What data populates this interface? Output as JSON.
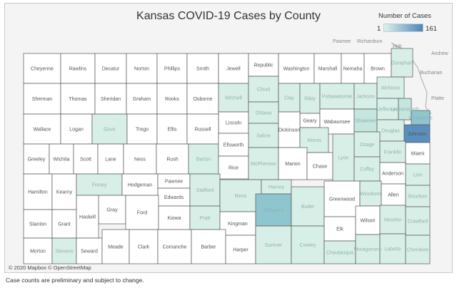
{
  "title": "Kansas COVID-19 Cases by County",
  "legend": {
    "title": "Number of Cases",
    "min": "1",
    "max": "161",
    "color_low": "#dff1ec",
    "color_high": "#4f86b7"
  },
  "attribution": "© 2020 Mapbox © OpenStreetMap",
  "footnote": "Case counts are preliminary and subject to change.",
  "edge_labels": [
    "Pawnee",
    "Richardson",
    "Holt",
    "Andrew",
    "Buchanan",
    "Platte"
  ],
  "colors": {
    "none": "#ffffff",
    "level1": "#d8efe8",
    "level2": "#c4e6de",
    "level3": "#8ec6d0",
    "level4": "#5a8fbd",
    "background": "#f4f4f4"
  },
  "counties": [
    {
      "name": "Cheyenne",
      "level": 0
    },
    {
      "name": "Rawlins",
      "level": 0
    },
    {
      "name": "Decatur",
      "level": 0
    },
    {
      "name": "Norton",
      "level": 0
    },
    {
      "name": "Phillips",
      "level": 0
    },
    {
      "name": "Smith",
      "level": 0
    },
    {
      "name": "Jewell",
      "level": 0
    },
    {
      "name": "Republic",
      "level": 0
    },
    {
      "name": "Washington",
      "level": 0
    },
    {
      "name": "Marshall",
      "level": 0
    },
    {
      "name": "Nemaha",
      "level": 0
    },
    {
      "name": "Brown",
      "level": 0
    },
    {
      "name": "Doniphan",
      "level": 1
    },
    {
      "name": "Sherman",
      "level": 0
    },
    {
      "name": "Thomas",
      "level": 0
    },
    {
      "name": "Sheridan",
      "level": 0
    },
    {
      "name": "Graham",
      "level": 0
    },
    {
      "name": "Rooks",
      "level": 0
    },
    {
      "name": "Osborne",
      "level": 0
    },
    {
      "name": "Mitchell",
      "level": 1
    },
    {
      "name": "Cloud",
      "level": 1
    },
    {
      "name": "Clay",
      "level": 1
    },
    {
      "name": "Riley",
      "level": 1
    },
    {
      "name": "Pottawatomie",
      "level": 1
    },
    {
      "name": "Jackson",
      "level": 1
    },
    {
      "name": "Atchison",
      "level": 1
    },
    {
      "name": "Lincoln",
      "level": 0
    },
    {
      "name": "Ottawa",
      "level": 1
    },
    {
      "name": "Geary",
      "level": 0
    },
    {
      "name": "Wabaunsee",
      "level": 0
    },
    {
      "name": "Shawnee",
      "level": 2
    },
    {
      "name": "Jefferson",
      "level": 1
    },
    {
      "name": "Leavenworth",
      "level": 2
    },
    {
      "name": "Wyandotte",
      "level": 3
    },
    {
      "name": "Wallace",
      "level": 0
    },
    {
      "name": "Logan",
      "level": 0
    },
    {
      "name": "Gove",
      "level": 1
    },
    {
      "name": "Trego",
      "level": 0
    },
    {
      "name": "Ellis",
      "level": 0
    },
    {
      "name": "Russell",
      "level": 0
    },
    {
      "name": "Saline",
      "level": 1
    },
    {
      "name": "Dickinson",
      "level": 0
    },
    {
      "name": "Douglas",
      "level": 1
    },
    {
      "name": "Johnson",
      "level": 4
    },
    {
      "name": "Greeley",
      "level": 0
    },
    {
      "name": "Wichita",
      "level": 0
    },
    {
      "name": "Scott",
      "level": 0
    },
    {
      "name": "Lane",
      "level": 0
    },
    {
      "name": "Ness",
      "level": 0
    },
    {
      "name": "Rush",
      "level": 0
    },
    {
      "name": "Barton",
      "level": 1
    },
    {
      "name": "Ellsworth",
      "level": 0
    },
    {
      "name": "Morris",
      "level": 1
    },
    {
      "name": "Osage",
      "level": 1
    },
    {
      "name": "Franklin",
      "level": 1
    },
    {
      "name": "Miami",
      "level": 0
    },
    {
      "name": "Rice",
      "level": 0
    },
    {
      "name": "McPherson",
      "level": 1
    },
    {
      "name": "Marion",
      "level": 0
    },
    {
      "name": "Chase",
      "level": 0
    },
    {
      "name": "Lyon",
      "level": 1
    },
    {
      "name": "Coffey",
      "level": 1
    },
    {
      "name": "Anderson",
      "level": 0
    },
    {
      "name": "Linn",
      "level": 1
    },
    {
      "name": "Hamilton",
      "level": 0
    },
    {
      "name": "Kearny",
      "level": 0
    },
    {
      "name": "Finney",
      "level": 1
    },
    {
      "name": "Hodgeman",
      "level": 0
    },
    {
      "name": "Pawnee",
      "level": 0
    },
    {
      "name": "Edwards",
      "level": 0
    },
    {
      "name": "Stafford",
      "level": 1
    },
    {
      "name": "Reno",
      "level": 1
    },
    {
      "name": "Harvey",
      "level": 1
    },
    {
      "name": "Greenwood",
      "level": 0
    },
    {
      "name": "Woodson",
      "level": 1
    },
    {
      "name": "Allen",
      "level": 0
    },
    {
      "name": "Bourbon",
      "level": 1
    },
    {
      "name": "Gray",
      "level": 0
    },
    {
      "name": "Ford",
      "level": 0
    },
    {
      "name": "Kiowa",
      "level": 0
    },
    {
      "name": "Pratt",
      "level": 1
    },
    {
      "name": "Kingman",
      "level": 0
    },
    {
      "name": "Sedgwick",
      "level": 3
    },
    {
      "name": "Butler",
      "level": 1
    },
    {
      "name": "Elk",
      "level": 0
    },
    {
      "name": "Wilson",
      "level": 0
    },
    {
      "name": "Neosho",
      "level": 1
    },
    {
      "name": "Crawford",
      "level": 1
    },
    {
      "name": "Stanton",
      "level": 0
    },
    {
      "name": "Grant",
      "level": 0
    },
    {
      "name": "Haskell",
      "level": 0
    },
    {
      "name": "Morton",
      "level": 0
    },
    {
      "name": "Stevens",
      "level": 1
    },
    {
      "name": "Seward",
      "level": 0
    },
    {
      "name": "Meade",
      "level": 0
    },
    {
      "name": "Clark",
      "level": 0
    },
    {
      "name": "Comanche",
      "level": 0
    },
    {
      "name": "Barber",
      "level": 0
    },
    {
      "name": "Harper",
      "level": 0
    },
    {
      "name": "Sumner",
      "level": 1
    },
    {
      "name": "Cowley",
      "level": 1
    },
    {
      "name": "Chautauqua",
      "level": 1
    },
    {
      "name": "Montgomery",
      "level": 1
    },
    {
      "name": "Labette",
      "level": 1
    },
    {
      "name": "Cherokee",
      "level": 1
    }
  ]
}
